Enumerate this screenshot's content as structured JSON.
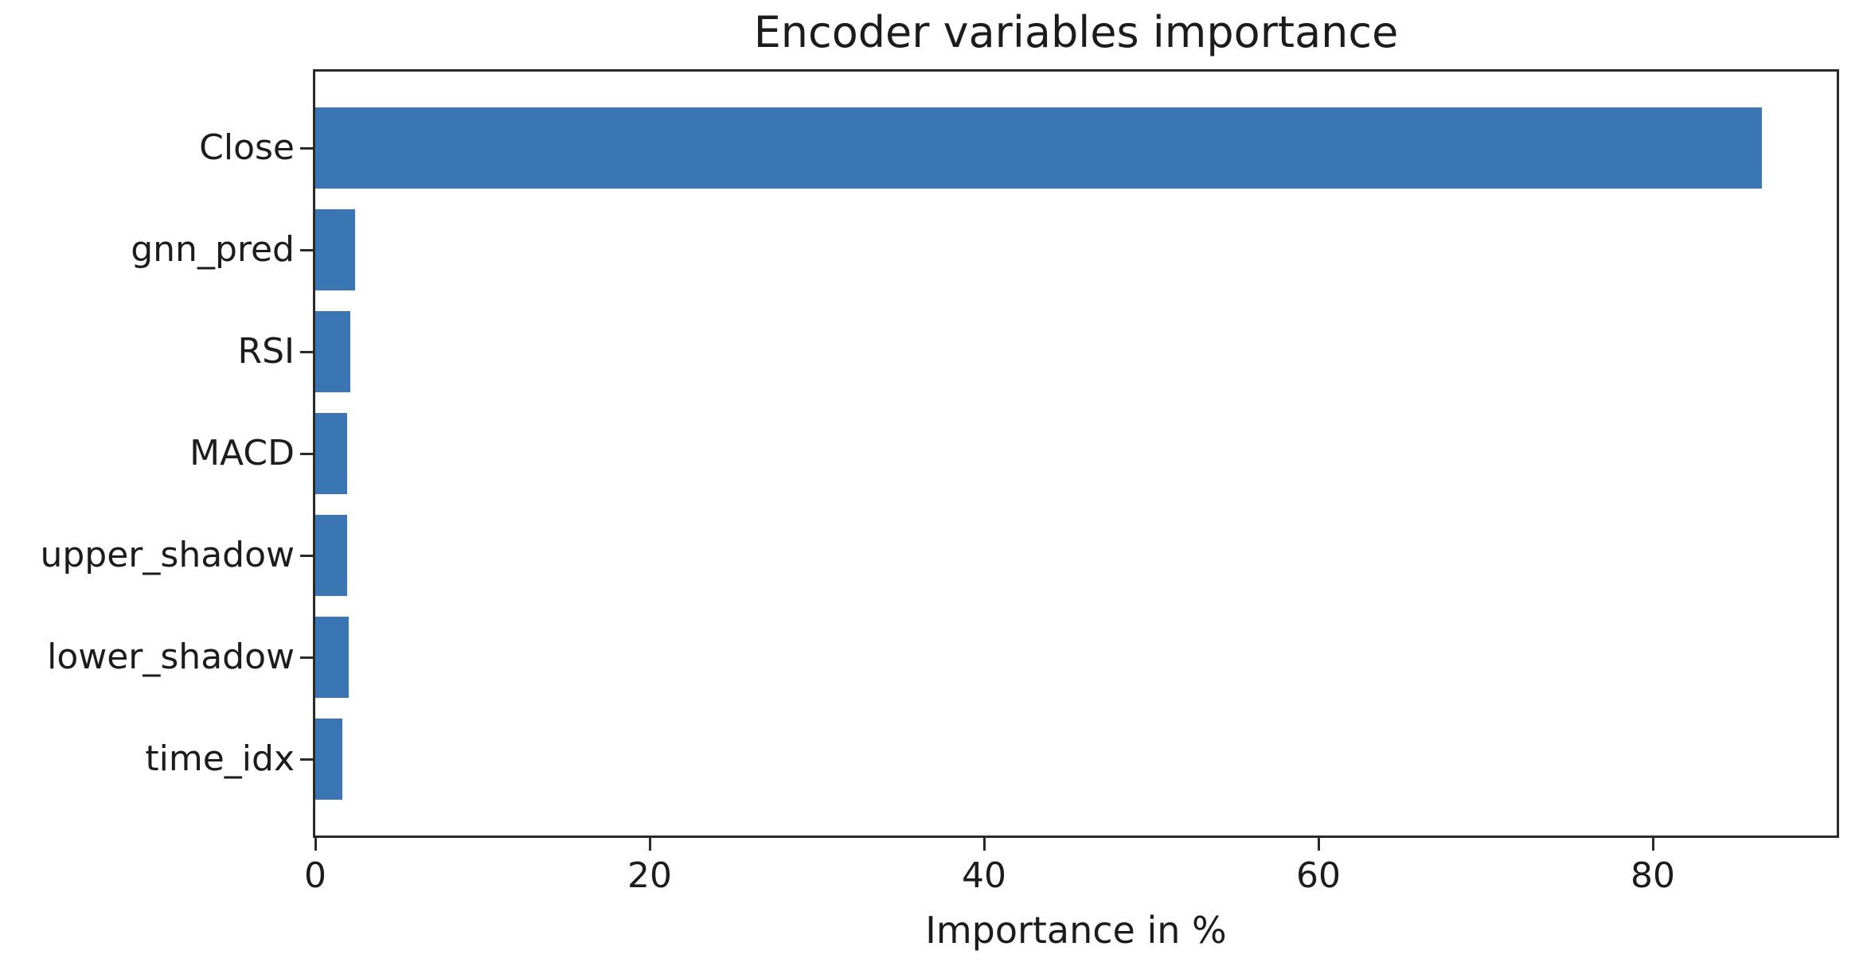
{
  "chart_data": {
    "type": "bar",
    "orientation": "horizontal",
    "title": "Encoder variables importance",
    "xlabel": "Importance in %",
    "ylabel": "",
    "categories": [
      "Close",
      "gnn_pred",
      "RSI",
      "MACD",
      "upper_shadow",
      "lower_shadow",
      "time_idx"
    ],
    "values": [
      86.5,
      2.4,
      2.1,
      1.9,
      1.9,
      2.0,
      1.6
    ],
    "xticks": [
      0,
      20,
      40,
      60,
      80
    ],
    "xlim": [
      0,
      91
    ],
    "bar_color": "#3a76b4",
    "bar_relative_height": 0.8,
    "grid": false,
    "legend": null,
    "spines": "full-box"
  },
  "colors": {
    "background": "#ffffff",
    "bar": "#3a76b4",
    "text": "#1c1c1c",
    "spine": "#2a2a2a"
  }
}
